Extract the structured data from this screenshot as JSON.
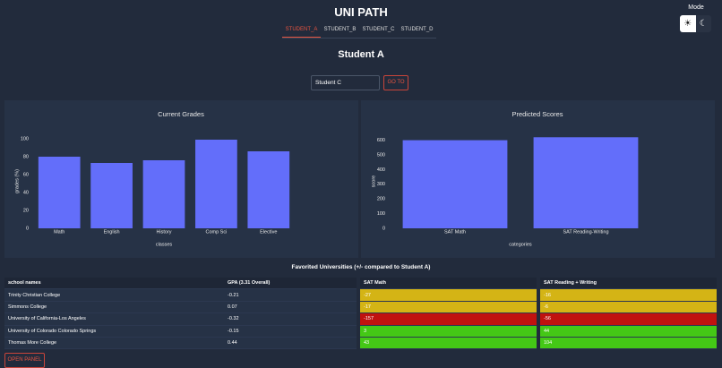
{
  "header": {
    "title": "UNI PATH",
    "mode_label": "Mode"
  },
  "tabs": [
    "STUDENT_A",
    "STUDENT_B",
    "STUDENT_C",
    "STUDENT_D"
  ],
  "heading": "Student A",
  "search": {
    "value": "Student C",
    "button": "GO TO"
  },
  "chart_data": [
    {
      "type": "bar",
      "title": "Current Grades",
      "categories": [
        "Math",
        "English",
        "History",
        "Comp Sci",
        "Elective"
      ],
      "values": [
        80,
        73,
        76,
        99,
        86
      ],
      "color": "#636efa",
      "ylim": [
        0,
        105
      ],
      "yticks": [
        0,
        20,
        40,
        60,
        80,
        100
      ],
      "x_label": "classes",
      "y_label": "grades (%)"
    },
    {
      "type": "bar",
      "title": "Predicted Scores",
      "categories": [
        "SAT Math",
        "SAT Reading-Writing"
      ],
      "values": [
        600,
        620
      ],
      "color": "#636efa",
      "ylim": [
        0,
        640
      ],
      "yticks": [
        0,
        100,
        200,
        300,
        400,
        500,
        600
      ],
      "x_label": "categories",
      "y_label": "score"
    }
  ],
  "table": {
    "title": "Favorited Universities (+/- compared to Student A)",
    "columns": [
      "school names",
      "GPA (3.31 Overall)",
      "SAT Math",
      "SAT Reading + Writing"
    ],
    "rows": [
      [
        "Trinity Christian College",
        "-0.21",
        "-27",
        "-16"
      ],
      [
        "Simmons College",
        "0.07",
        "-17",
        "-6"
      ],
      [
        "University of California-Los Angeles",
        "-0.32",
        "-157",
        "-56"
      ],
      [
        "University of Colorado Colorado Springs",
        "-0.15",
        "3",
        "44"
      ],
      [
        "Thomas More College",
        "0.44",
        "43",
        "104"
      ]
    ],
    "sat_colors": [
      [
        "#d4b415",
        "#d4b415"
      ],
      [
        "#d4b415",
        "#d4b415"
      ],
      [
        "#c0120f",
        "#c0120f"
      ],
      [
        "#44c816",
        "#44c816"
      ],
      [
        "#44c816",
        "#44c816"
      ]
    ]
  },
  "open_panel": "OPEN PANEL"
}
